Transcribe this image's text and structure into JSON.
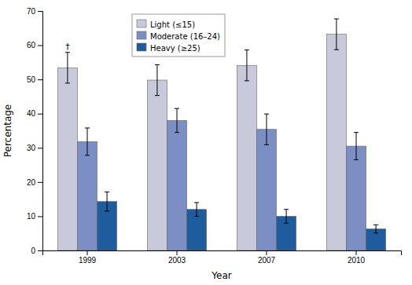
{
  "chart_data": {
    "type": "bar",
    "xlabel": "Year",
    "ylabel": "Percentage",
    "categories": [
      "1999",
      "2003",
      "2007",
      "2010"
    ],
    "series": [
      {
        "name": "Light (≤15)",
        "color": "#c9c9dc",
        "values": [
          53.4,
          49.8,
          54.1,
          63.2
        ],
        "errors": [
          4.5,
          4.5,
          4.5,
          4.5
        ]
      },
      {
        "name": "Moderate (16–24)",
        "color": "#7b8fc4",
        "values": [
          31.8,
          38.0,
          35.4,
          30.5
        ],
        "errors": [
          4.0,
          3.5,
          4.5,
          4.0
        ]
      },
      {
        "name": "Heavy (≥25)",
        "color": "#1f5c9e",
        "values": [
          14.3,
          12.0,
          10.0,
          6.3
        ],
        "errors": [
          2.8,
          2.0,
          2.0,
          1.2
        ]
      }
    ],
    "annotations": [
      {
        "text": "†",
        "category": "1999",
        "series": "Light (≤15)"
      }
    ],
    "ylim": [
      0,
      70
    ],
    "yticks": [
      0,
      10,
      20,
      30,
      40,
      50,
      60,
      70
    ],
    "grid": false,
    "legend": "top"
  }
}
